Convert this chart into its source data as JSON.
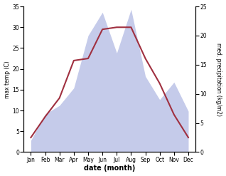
{
  "months": [
    "Jan",
    "Feb",
    "Mar",
    "Apr",
    "May",
    "Jun",
    "Jul",
    "Aug",
    "Sep",
    "Oct",
    "Nov",
    "Dec"
  ],
  "temperature": [
    3.5,
    8.5,
    13.0,
    22.0,
    22.5,
    29.5,
    30.0,
    30.0,
    22.5,
    16.5,
    9.0,
    3.5
  ],
  "precipitation": [
    2.0,
    6.5,
    8.0,
    11.0,
    20.0,
    24.0,
    17.0,
    24.5,
    13.0,
    9.0,
    12.0,
    7.0
  ],
  "temp_color": "#a03040",
  "precip_fill_color": "#c5cbea",
  "ylim_left": [
    0,
    35
  ],
  "ylim_right": [
    0,
    25
  ],
  "yticks_left": [
    0,
    5,
    10,
    15,
    20,
    25,
    30,
    35
  ],
  "yticks_right": [
    0,
    5,
    10,
    15,
    20,
    25
  ],
  "xlabel": "date (month)",
  "ylabel_left": "max temp (C)",
  "ylabel_right": "med. precipitation (kg/m2)",
  "bg_color": "#ffffff",
  "figsize": [
    3.18,
    2.47
  ],
  "dpi": 100
}
